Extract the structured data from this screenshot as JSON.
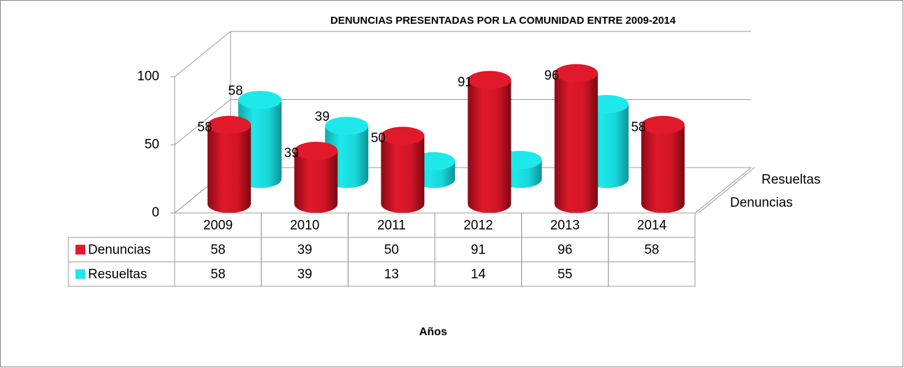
{
  "chart_data": {
    "type": "cylinder3d",
    "title": "DENUNCIAS PRESENTADAS POR LA COMUNIDAD ENTRE 2009-2014",
    "x_label": "Años",
    "categories": [
      "2009",
      "2010",
      "2011",
      "2012",
      "2013",
      "2014"
    ],
    "series": [
      {
        "name": "Denuncias",
        "color": "#e0192b",
        "values": [
          58,
          39,
          50,
          91,
          96,
          58
        ]
      },
      {
        "name": "Resueltas",
        "color": "#1ee8ea",
        "values": [
          58,
          39,
          13,
          14,
          55,
          null
        ]
      }
    ],
    "ylim": [
      0,
      100
    ],
    "yticks": [
      0,
      50,
      100
    ],
    "grid": true,
    "data_table": true
  }
}
